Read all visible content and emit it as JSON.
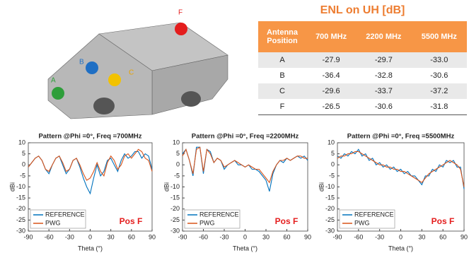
{
  "figure": {
    "labels": [
      "A",
      "B",
      "C",
      "F"
    ]
  },
  "table": {
    "title": "ENL on UH [dB]",
    "headers": [
      "Antenna Position",
      "700 MHz",
      "2200 MHz",
      "5500 MHz"
    ],
    "rows": [
      [
        "A",
        "-27.9",
        "-29.7",
        "-33.0"
      ],
      [
        "B",
        "-36.4",
        "-32.8",
        "-30.6"
      ],
      [
        "C",
        "-29.6",
        "-33.7",
        "-37.2"
      ],
      [
        "F",
        "-26.5",
        "-30.6",
        "-31.8"
      ]
    ]
  },
  "chart_data": [
    {
      "type": "line",
      "title": "Pattern @Phi =0°, Freq =700MHz",
      "x_label": "Theta (°)",
      "y_label": "dBi",
      "annotation": "Pos F",
      "x": [
        -90,
        -85,
        -80,
        -75,
        -70,
        -65,
        -60,
        -55,
        -50,
        -45,
        -40,
        -35,
        -30,
        -25,
        -20,
        -15,
        -10,
        -5,
        0,
        5,
        10,
        15,
        20,
        25,
        30,
        35,
        40,
        45,
        50,
        55,
        60,
        65,
        70,
        75,
        80,
        85,
        90
      ],
      "series": [
        {
          "name": "REFERENCE",
          "color": "#0072BD",
          "values": [
            -1,
            1,
            3,
            4,
            2,
            -2,
            -4,
            0,
            3,
            4,
            0,
            -4,
            -2,
            2,
            3,
            -1,
            -6,
            -10,
            -13,
            -6,
            0,
            -5,
            -3,
            2,
            3,
            0,
            -3,
            2,
            5,
            3,
            4,
            6,
            6,
            3,
            5,
            4,
            -2
          ]
        },
        {
          "name": "PWG",
          "color": "#D95319",
          "values": [
            -1,
            1,
            3,
            4,
            2,
            -2,
            -3,
            0,
            3,
            4,
            1,
            -3,
            -2,
            2,
            3,
            0,
            -4,
            -7,
            -6,
            -3,
            1,
            -3,
            -5,
            1,
            4,
            2,
            -2,
            0,
            4,
            5,
            3,
            5,
            7,
            6,
            3,
            2,
            -3
          ]
        }
      ],
      "xlim": [
        -90,
        90
      ],
      "ylim": [
        -30,
        10
      ],
      "xticks": [
        -90,
        -60,
        -30,
        0,
        30,
        60,
        90
      ],
      "yticks": [
        -30,
        -25,
        -20,
        -15,
        -10,
        -5,
        0,
        5,
        10
      ]
    },
    {
      "type": "line",
      "title": "Pattern @Phi =0°, Freq =2200MHz",
      "x_label": "Theta (°)",
      "y_label": "dBi",
      "annotation": "Pos F",
      "x": [
        -90,
        -85,
        -80,
        -75,
        -70,
        -65,
        -60,
        -55,
        -50,
        -45,
        -40,
        -35,
        -30,
        -25,
        -20,
        -15,
        -10,
        -5,
        0,
        5,
        10,
        15,
        20,
        25,
        30,
        35,
        40,
        45,
        50,
        55,
        60,
        65,
        70,
        75,
        80,
        85,
        90
      ],
      "series": [
        {
          "name": "REFERENCE",
          "color": "#0072BD",
          "values": [
            5,
            7,
            2,
            -5,
            8,
            8,
            -4,
            7,
            6,
            1,
            3,
            2,
            -2,
            0,
            1,
            2,
            0,
            0,
            -1,
            0,
            -2,
            -2,
            -3,
            -5,
            -7,
            -12,
            -4,
            0,
            2,
            1,
            3,
            2,
            3,
            4,
            3,
            4,
            2
          ]
        },
        {
          "name": "PWG",
          "color": "#D95319",
          "values": [
            4,
            7,
            2,
            -4,
            7,
            8,
            -3,
            7,
            5,
            1,
            3,
            2,
            -1,
            0,
            1,
            2,
            1,
            0,
            -1,
            0,
            -1,
            -2,
            -2,
            -4,
            -6,
            -8,
            -3,
            0,
            2,
            2,
            3,
            2,
            3,
            4,
            4,
            3,
            3
          ]
        }
      ],
      "xlim": [
        -90,
        90
      ],
      "ylim": [
        -30,
        10
      ],
      "xticks": [
        -90,
        -60,
        -30,
        0,
        30,
        60,
        90
      ],
      "yticks": [
        -30,
        -25,
        -20,
        -15,
        -10,
        -5,
        0,
        5,
        10
      ]
    },
    {
      "type": "line",
      "title": "Pattern @Phi =0°, Freq =5500MHz",
      "x_label": "Theta (°)",
      "y_label": "dBi",
      "annotation": "Pos F",
      "x": [
        -90,
        -85,
        -80,
        -75,
        -70,
        -65,
        -60,
        -55,
        -50,
        -45,
        -40,
        -35,
        -30,
        -25,
        -20,
        -15,
        -10,
        -5,
        0,
        5,
        10,
        15,
        20,
        25,
        30,
        35,
        40,
        45,
        50,
        55,
        60,
        65,
        70,
        75,
        80,
        85,
        90
      ],
      "series": [
        {
          "name": "REFERENCE",
          "color": "#0072BD",
          "values": [
            4,
            3,
            5,
            4,
            6,
            5,
            7,
            4,
            5,
            2,
            3,
            0,
            1,
            -1,
            0,
            -2,
            -1,
            -3,
            -2,
            -4,
            -3,
            -5,
            -5,
            -7,
            -9,
            -5,
            -5,
            -2,
            -3,
            0,
            -1,
            2,
            1,
            2,
            -1,
            -1,
            -11
          ]
        },
        {
          "name": "PWG",
          "color": "#D95319",
          "values": [
            3,
            4,
            4,
            5,
            5,
            6,
            6,
            5,
            4,
            3,
            2,
            1,
            0,
            0,
            -1,
            -1,
            -2,
            -2,
            -3,
            -3,
            -4,
            -5,
            -6,
            -7,
            -8,
            -6,
            -4,
            -3,
            -2,
            -1,
            0,
            1,
            2,
            1,
            0,
            -2,
            -10
          ]
        }
      ],
      "xlim": [
        -90,
        90
      ],
      "ylim": [
        -30,
        10
      ],
      "xticks": [
        -90,
        -60,
        -30,
        0,
        30,
        60,
        90
      ],
      "yticks": [
        -30,
        -25,
        -20,
        -15,
        -10,
        -5,
        0,
        5,
        10
      ]
    }
  ]
}
